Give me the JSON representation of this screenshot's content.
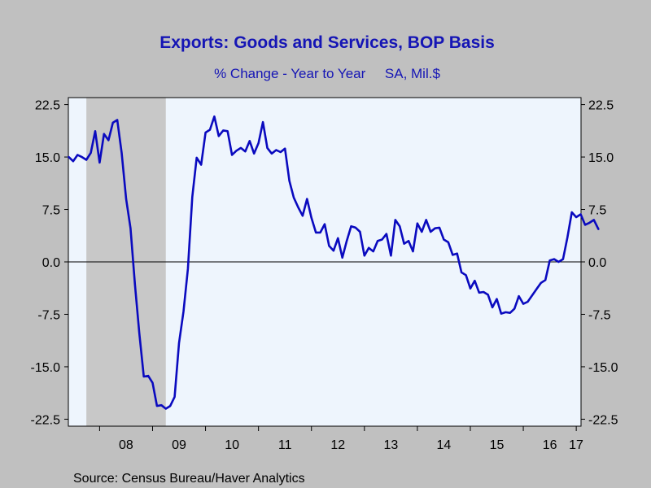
{
  "chart_data": {
    "type": "line",
    "title": "Exports: Goods and Services, BOP Basis",
    "subtitle": "% Change - Year to Year     SA, Mil.$",
    "source": "Source:  Census Bureau/Haver Analytics",
    "ylim": [
      -23.5,
      23.5
    ],
    "xlim": [
      2007.41,
      2017.09
    ],
    "grid": false,
    "zero_line": true,
    "yticks": [
      22.5,
      15.0,
      7.5,
      0.0,
      -7.5,
      -15.0,
      -22.5
    ],
    "ytick_labels": [
      "22.5",
      "15.0",
      "7.5",
      "0.0",
      "-7.5",
      "-15.0",
      "-22.5"
    ],
    "xtick_labels": [
      {
        "label": "08",
        "year": 2008
      },
      {
        "label": "09",
        "year": 2009
      },
      {
        "label": "10",
        "year": 2010
      },
      {
        "label": "11",
        "year": 2011
      },
      {
        "label": "12",
        "year": 2012
      },
      {
        "label": "13",
        "year": 2013
      },
      {
        "label": "14",
        "year": 2014
      },
      {
        "label": "15",
        "year": 2015
      },
      {
        "label": "16",
        "year": 2016
      },
      {
        "label": "17",
        "year": 2017
      }
    ],
    "recession_shading": {
      "start": 2007.75,
      "end": 2009.25,
      "color": "#c8c8c8"
    },
    "colors": {
      "line": "#0a0abf",
      "title": "#1515b5",
      "plot_bg": "#eef5fd",
      "frame_bg": "#c0c0c0"
    },
    "series": [
      {
        "name": "",
        "start": 2007.417,
        "step": 0.08333,
        "values": [
          15.0,
          14.4,
          15.3,
          15.0,
          14.6,
          15.6,
          18.7,
          14.2,
          18.3,
          17.4,
          19.9,
          20.3,
          15.6,
          9.0,
          4.8,
          -3.2,
          -10.2,
          -16.4,
          -16.3,
          -17.3,
          -20.6,
          -20.5,
          -21.0,
          -20.6,
          -19.3,
          -11.6,
          -7.1,
          -1.0,
          9.3,
          14.9,
          13.9,
          18.5,
          18.9,
          20.8,
          18.0,
          18.8,
          18.7,
          15.3,
          15.9,
          16.3,
          15.8,
          17.3,
          15.5,
          17.0,
          20.0,
          16.3,
          15.5,
          16.0,
          15.7,
          16.2,
          11.6,
          9.2,
          7.8,
          6.6,
          9.0,
          6.3,
          4.2,
          4.2,
          5.4,
          2.3,
          1.6,
          3.4,
          0.6,
          3.0,
          5.1,
          4.9,
          4.3,
          0.9,
          2.0,
          1.5,
          3.0,
          3.2,
          4.0,
          0.9,
          6.0,
          5.1,
          2.6,
          3.0,
          1.5,
          5.5,
          4.3,
          6.0,
          4.3,
          4.8,
          4.9,
          3.2,
          2.8,
          1.0,
          1.2,
          -1.5,
          -1.9,
          -3.8,
          -2.7,
          -4.4,
          -4.3,
          -4.7,
          -6.5,
          -5.3,
          -7.4,
          -7.2,
          -7.3,
          -6.7,
          -4.9,
          -6.0,
          -5.7,
          -4.8,
          -3.9,
          -3.0,
          -2.6,
          0.2,
          0.4,
          0.0,
          0.4,
          3.5,
          7.1,
          6.4,
          6.8,
          5.3,
          5.6,
          6.0,
          4.7
        ]
      }
    ]
  }
}
